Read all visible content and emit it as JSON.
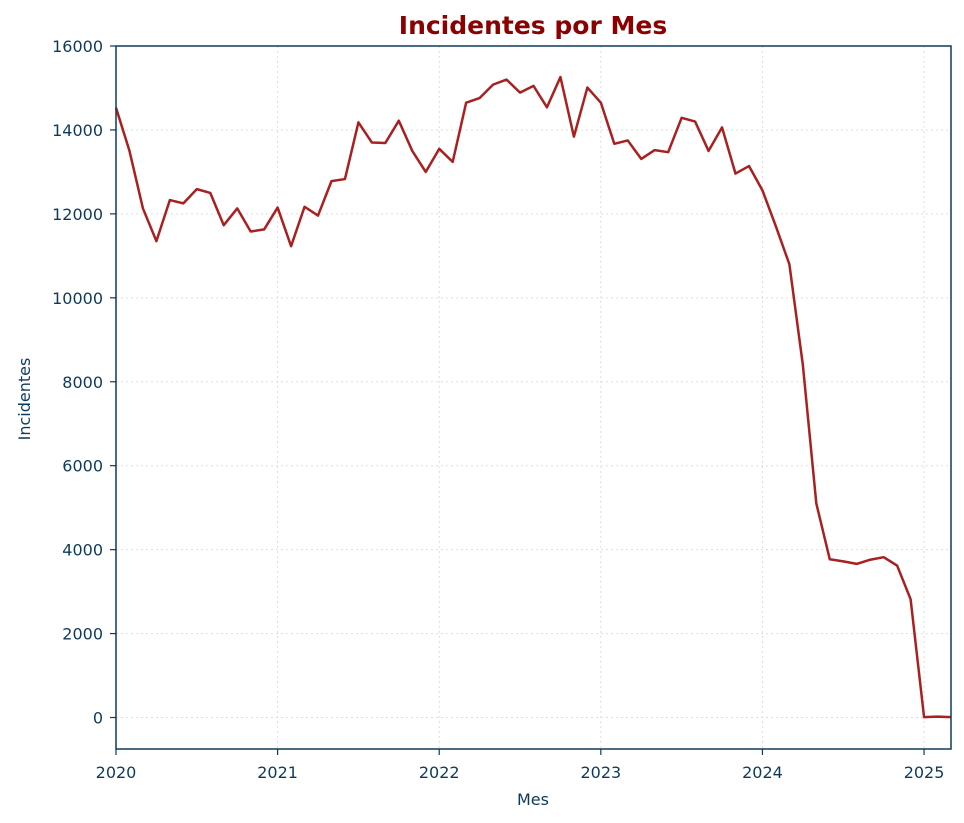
{
  "chart_data": {
    "type": "line",
    "title": "Incidentes por Mes",
    "xlabel": "Mes",
    "ylabel": "Incidentes",
    "xlim": [
      2020.0,
      2025.1667
    ],
    "ylim": [
      -750,
      16000
    ],
    "yticks": [
      0,
      2000,
      4000,
      6000,
      8000,
      10000,
      12000,
      14000,
      16000
    ],
    "ytick_labels": [
      "0",
      "2000",
      "4000",
      "6000",
      "8000",
      "10000",
      "12000",
      "14000",
      "16000"
    ],
    "xticks": [
      2020,
      2021,
      2022,
      2023,
      2024,
      2025
    ],
    "xtick_labels": [
      "2020",
      "2021",
      "2022",
      "2023",
      "2024",
      "2025"
    ],
    "grid": true,
    "colors": {
      "title": "#8b0000",
      "line": "#a82020",
      "axis": "#0d3a5c",
      "grid": "#dddddd"
    },
    "series": [
      {
        "name": "Incidentes",
        "x": [
          "2020-01",
          "2020-02",
          "2020-03",
          "2020-04",
          "2020-05",
          "2020-06",
          "2020-07",
          "2020-08",
          "2020-09",
          "2020-10",
          "2020-11",
          "2020-12",
          "2021-01",
          "2021-02",
          "2021-03",
          "2021-04",
          "2021-05",
          "2021-06",
          "2021-07",
          "2021-08",
          "2021-09",
          "2021-10",
          "2021-11",
          "2021-12",
          "2022-01",
          "2022-02",
          "2022-03",
          "2022-04",
          "2022-05",
          "2022-06",
          "2022-07",
          "2022-08",
          "2022-09",
          "2022-10",
          "2022-11",
          "2022-12",
          "2023-01",
          "2023-02",
          "2023-03",
          "2023-04",
          "2023-05",
          "2023-06",
          "2023-07",
          "2023-08",
          "2023-09",
          "2023-10",
          "2023-11",
          "2023-12",
          "2024-01",
          "2024-02",
          "2024-03",
          "2024-04",
          "2024-05",
          "2024-06",
          "2024-07",
          "2024-08",
          "2024-09",
          "2024-10",
          "2024-11",
          "2024-12",
          "2025-01",
          "2025-02",
          "2025-03"
        ],
        "values": [
          14530,
          13500,
          12130,
          11350,
          12330,
          12250,
          12590,
          12500,
          11730,
          12130,
          11580,
          11630,
          12150,
          11230,
          12170,
          11960,
          12780,
          12830,
          14180,
          13700,
          13690,
          14220,
          13500,
          13000,
          13550,
          13240,
          14650,
          14760,
          15080,
          15200,
          14890,
          15050,
          14540,
          15260,
          13840,
          15010,
          14650,
          13670,
          13750,
          13310,
          13520,
          13470,
          14290,
          14200,
          13500,
          14060,
          12960,
          13140,
          12560,
          11700,
          10800,
          8400,
          5100,
          3770,
          3720,
          3660,
          3760,
          3820,
          3620,
          2820,
          10,
          20,
          10
        ]
      }
    ]
  }
}
